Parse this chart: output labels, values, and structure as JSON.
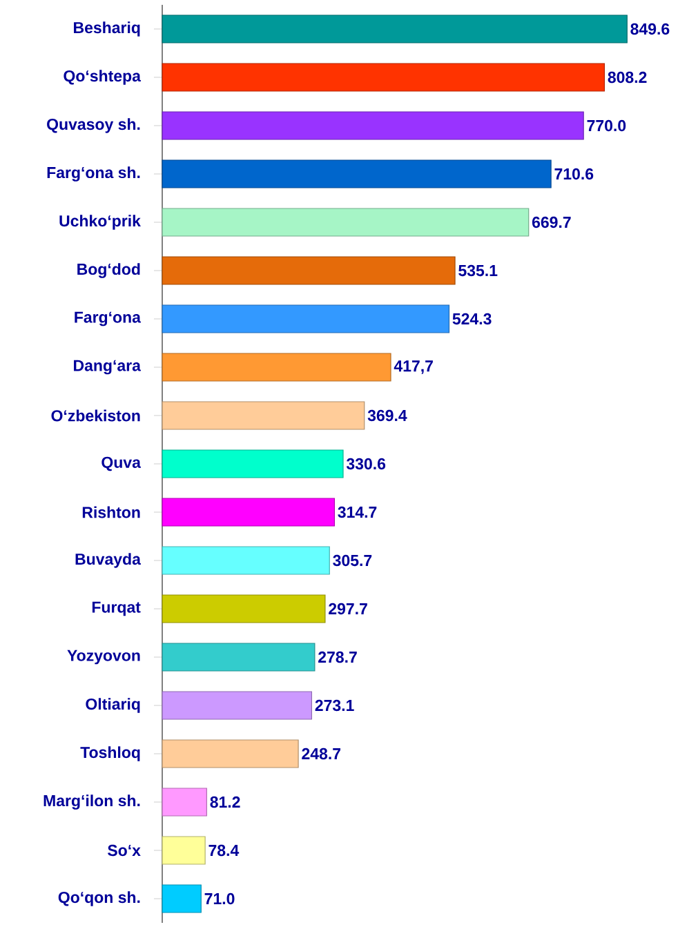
{
  "chart_data": {
    "type": "bar",
    "orientation": "horizontal",
    "categories": [
      "Beshariq",
      "Qo‘shtepa",
      "Quvasoy sh.",
      "Farg‘ona sh.",
      "Uchko‘prik",
      "Bog‘dod",
      "Farg‘ona",
      "Dang‘ara",
      "O‘zbekiston",
      "Quva",
      "Rishton",
      "Buvayda",
      "Furqat",
      "Yozyovon",
      "Oltiariq",
      "Toshloq",
      "Marg‘ilon sh.",
      "So‘x",
      "Qo‘qon sh."
    ],
    "values": [
      849.6,
      808.2,
      770.0,
      710.6,
      669.7,
      535.1,
      524.3,
      417.7,
      369.4,
      330.6,
      314.7,
      305.7,
      297.7,
      278.7,
      273.1,
      248.7,
      81.2,
      78.4,
      71.0
    ],
    "value_labels": [
      "849.6",
      "808.2",
      "770.0",
      "710.6",
      "669.7",
      "535.1",
      "524.3",
      "417,7",
      "369.4",
      "330.6",
      "314.7",
      "305.7",
      "297.7",
      "278.7",
      "273.1",
      "248.7",
      "81.2",
      "78.4",
      "71.0"
    ],
    "colors": [
      "#009999",
      "#ff3300",
      "#9933ff",
      "#0066cc",
      "#a6f5c6",
      "#e56b0a",
      "#3399ff",
      "#ff9933",
      "#ffcc99",
      "#00ffcc",
      "#ff00ff",
      "#66ffff",
      "#cccc00",
      "#33cccc",
      "#cc99ff",
      "#ffcc99",
      "#ff99ff",
      "#ffff99",
      "#00ccff"
    ]
  }
}
